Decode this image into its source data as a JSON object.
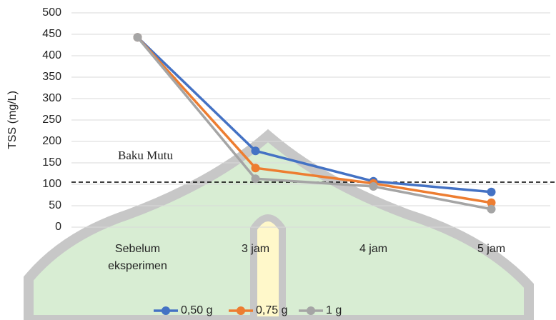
{
  "chart_data": {
    "type": "line",
    "y_label": "TSS (mg/L)",
    "categories": [
      "Sebelum eksperimen",
      "3 jam",
      "4 jam",
      "5 jam"
    ],
    "series": [
      {
        "name": "0,50 g",
        "color": "#4472c4",
        "values": [
          443,
          178,
          107,
          82
        ]
      },
      {
        "name": "0,75 g",
        "color": "#ed7d31",
        "values": [
          443,
          138,
          102,
          57
        ]
      },
      {
        "name": "1 g",
        "color": "#a5a5a5",
        "values": [
          443,
          113,
          95,
          42
        ]
      }
    ],
    "threshold": {
      "label": "Baku Mutu",
      "value": 105
    },
    "ylim": [
      0,
      500
    ],
    "yticks": [
      0,
      50,
      100,
      150,
      200,
      250,
      300,
      350,
      400,
      450,
      500
    ],
    "grid": true,
    "legend": "bottom"
  }
}
